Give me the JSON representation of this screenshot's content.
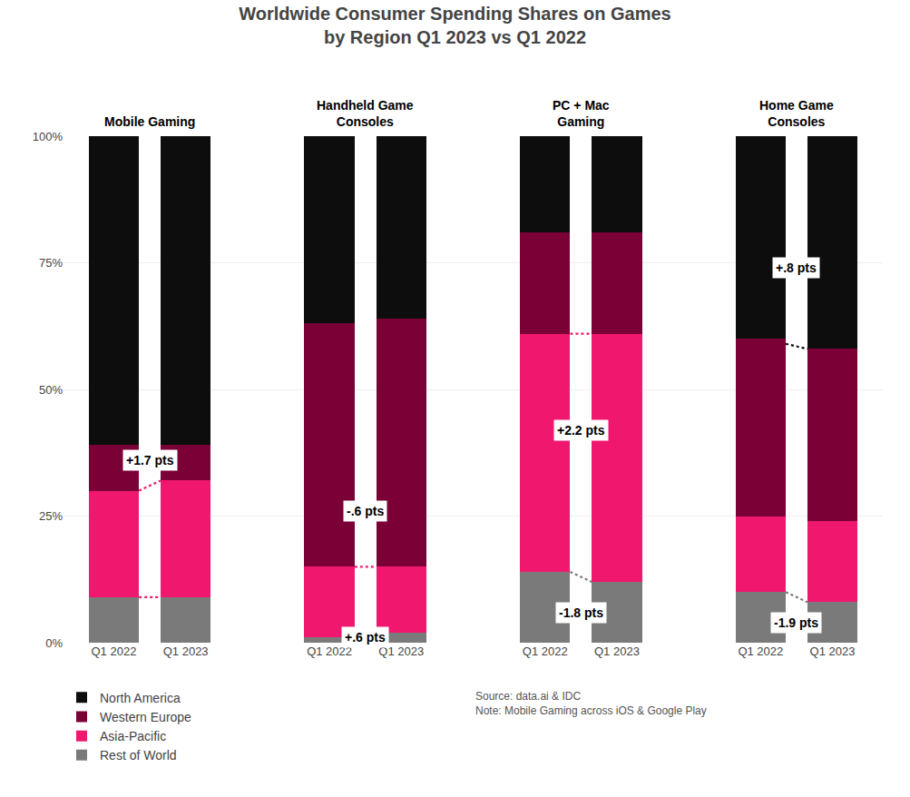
{
  "chart_data": {
    "type": "bar",
    "stacked": true,
    "title": "Worldwide Consumer Spending Shares on Games",
    "subtitle": "by Region Q1 2023 vs Q1 2022",
    "groups": [
      "Mobile Gaming",
      "Handheld Game\nConsoles",
      "PC + Mac\nGaming",
      "Home Game\nConsoles"
    ],
    "categories": [
      "Q1 2022",
      "Q1 2023",
      "Q1 2022",
      "Q1 2023",
      "Q1 2022",
      "Q1 2023",
      "Q1 2022",
      "Q1 2023"
    ],
    "series": [
      {
        "name": "Rest of World",
        "color": "#7a7a7a",
        "values": [
          9,
          9,
          1,
          2,
          14,
          12,
          10,
          8
        ]
      },
      {
        "name": "Asia-Pacific",
        "color": "#f0176f",
        "values": [
          21,
          23,
          14,
          13,
          47,
          49,
          15,
          16
        ]
      },
      {
        "name": "Western Europe",
        "color": "#7a0035",
        "values": [
          9,
          7,
          48,
          49,
          20,
          20,
          35,
          34
        ]
      },
      {
        "name": "North America",
        "color": "#0d0d0d",
        "values": [
          61,
          61,
          37,
          36,
          19,
          19,
          40,
          42
        ]
      }
    ],
    "connectors": [
      {
        "group": "Mobile Gaming",
        "color": "#f0176f",
        "y1": 30,
        "y2": 32
      },
      {
        "group": "Mobile Gaming",
        "color": "#f0176f",
        "y1": 9,
        "y2": 9
      },
      {
        "group": "Handheld Game\nConsoles",
        "color": "#f0176f",
        "y1": 15,
        "y2": 15
      },
      {
        "group": "Handheld Game\nConsoles",
        "color": "#7a7a7a",
        "y1": 1,
        "y2": 2
      },
      {
        "group": "PC + Mac\nGaming",
        "color": "#f0176f",
        "y1": 61,
        "y2": 61
      },
      {
        "group": "PC + Mac\nGaming",
        "color": "#7a7a7a",
        "y1": 14,
        "y2": 12
      },
      {
        "group": "Home Game\nConsoles",
        "color": "#0d0d0d",
        "y1": 59,
        "y2": 58
      },
      {
        "group": "Home Game\nConsoles",
        "color": "#7a7a7a",
        "y1": 10,
        "y2": 8
      }
    ],
    "annotations": [
      {
        "group": "Mobile Gaming",
        "text": "+1.7 pts",
        "y": 36
      },
      {
        "group": "Handheld Game\nConsoles",
        "text": "-.6 pts",
        "y": 26
      },
      {
        "group": "Handheld Game\nConsoles",
        "text": "+.6 pts",
        "y": 1
      },
      {
        "group": "PC + Mac\nGaming",
        "text": "+2.2 pts",
        "y": 42
      },
      {
        "group": "PC + Mac\nGaming",
        "text": "-1.8 pts",
        "y": 6
      },
      {
        "group": "Home Game\nConsoles",
        "text": "+.8 pts",
        "y": 74
      },
      {
        "group": "Home Game\nConsoles",
        "text": "-1.9 pts",
        "y": 4
      }
    ],
    "note": "Source: data.ai & IDC\nNote: Mobile Gaming across iOS & Google Play",
    "ylim": [
      0,
      100
    ],
    "yticks": [
      {
        "value": 0,
        "label": "0%"
      },
      {
        "value": 25,
        "label": "25%"
      },
      {
        "value": 50,
        "label": "50%"
      },
      {
        "value": 75,
        "label": "75%"
      },
      {
        "value": 100,
        "label": "100%"
      }
    ],
    "grid": true,
    "legend": "bottom"
  }
}
